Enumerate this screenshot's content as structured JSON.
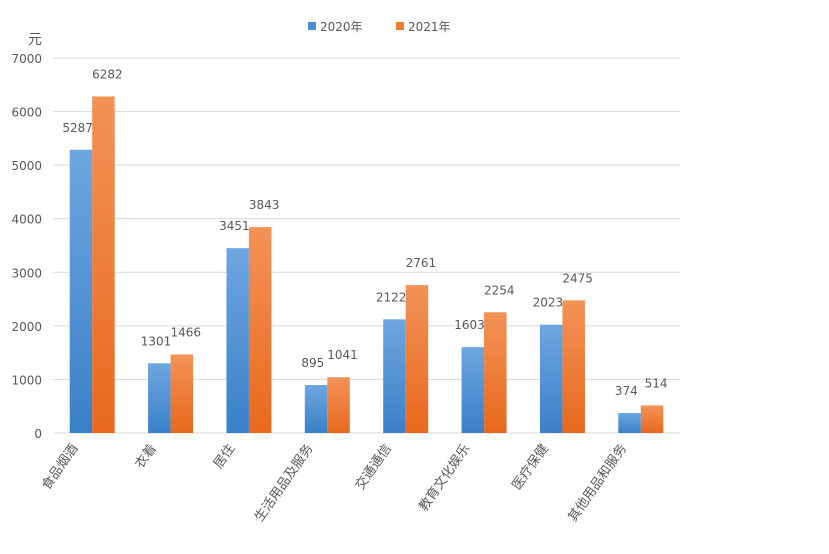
{
  "chart_data": {
    "type": "bar",
    "ylabel": "元",
    "ylim": [
      0,
      7000
    ],
    "yticks": [
      0,
      1000,
      2000,
      3000,
      4000,
      5000,
      6000,
      7000
    ],
    "grid": true,
    "legend_position": "top",
    "categories": [
      "食品烟酒",
      "衣着",
      "居住",
      "生活用品及服务",
      "交通通信",
      "教育文化娱乐",
      "医疗保健",
      "其他用品和服务"
    ],
    "series": [
      {
        "name": "2020年",
        "color": "#4a8fd3",
        "values": [
          5287,
          1301,
          3451,
          895,
          2122,
          1603,
          2023,
          374
        ]
      },
      {
        "name": "2021年",
        "color": "#ef7a33",
        "values": [
          6282,
          1466,
          3843,
          1041,
          2761,
          2254,
          2475,
          514
        ]
      }
    ]
  }
}
